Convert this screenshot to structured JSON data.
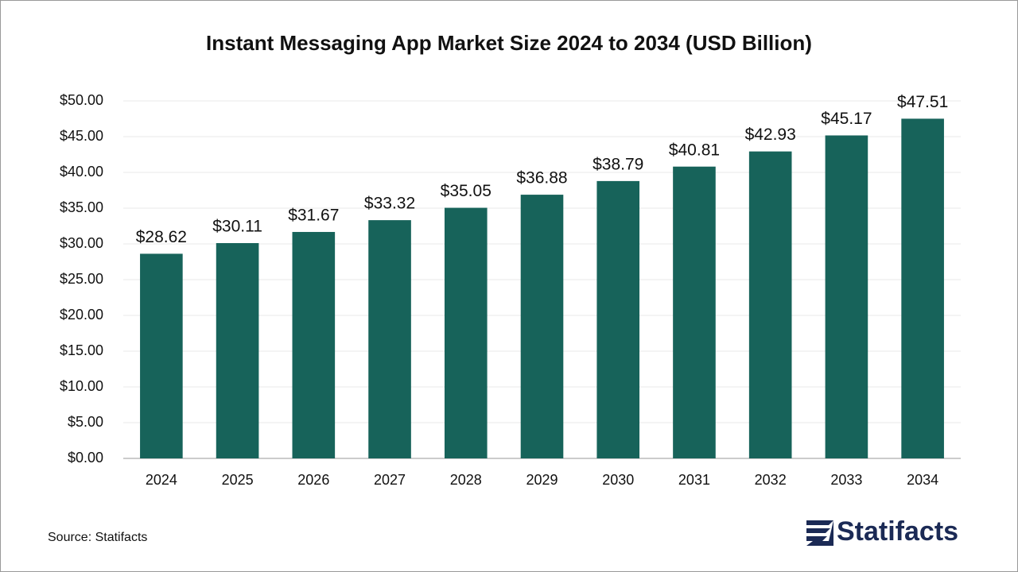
{
  "chart_data": {
    "type": "bar",
    "title": "Instant Messaging App Market Size 2024 to 2034 (USD Billion)",
    "categories": [
      "2024",
      "2025",
      "2026",
      "2027",
      "2028",
      "2029",
      "2030",
      "2031",
      "2032",
      "2033",
      "2034"
    ],
    "values": [
      28.62,
      30.11,
      31.67,
      33.32,
      35.05,
      36.88,
      38.79,
      40.81,
      42.93,
      45.17,
      47.51
    ],
    "value_labels": [
      "$28.62",
      "$30.11",
      "$31.67",
      "$33.32",
      "$35.05",
      "$36.88",
      "$38.79",
      "$40.81",
      "$42.93",
      "$45.17",
      "$47.51"
    ],
    "color": "#17635a",
    "ylim": [
      0,
      50
    ],
    "yticks": [
      {
        "value": 0,
        "label": "$0.00"
      },
      {
        "value": 5,
        "label": "$5.00"
      },
      {
        "value": 10,
        "label": "$10.00"
      },
      {
        "value": 15,
        "label": "$15.00"
      },
      {
        "value": 20,
        "label": "$20.00"
      },
      {
        "value": 25,
        "label": "$25.00"
      },
      {
        "value": 30,
        "label": "$30.00"
      },
      {
        "value": 35,
        "label": "$35.00"
      },
      {
        "value": 40,
        "label": "$40.00"
      },
      {
        "value": 45,
        "label": "$45.00"
      },
      {
        "value": 50,
        "label": "$50.00"
      }
    ],
    "grid": true,
    "source": "Source: Statifacts",
    "logo": "Statifacts"
  }
}
